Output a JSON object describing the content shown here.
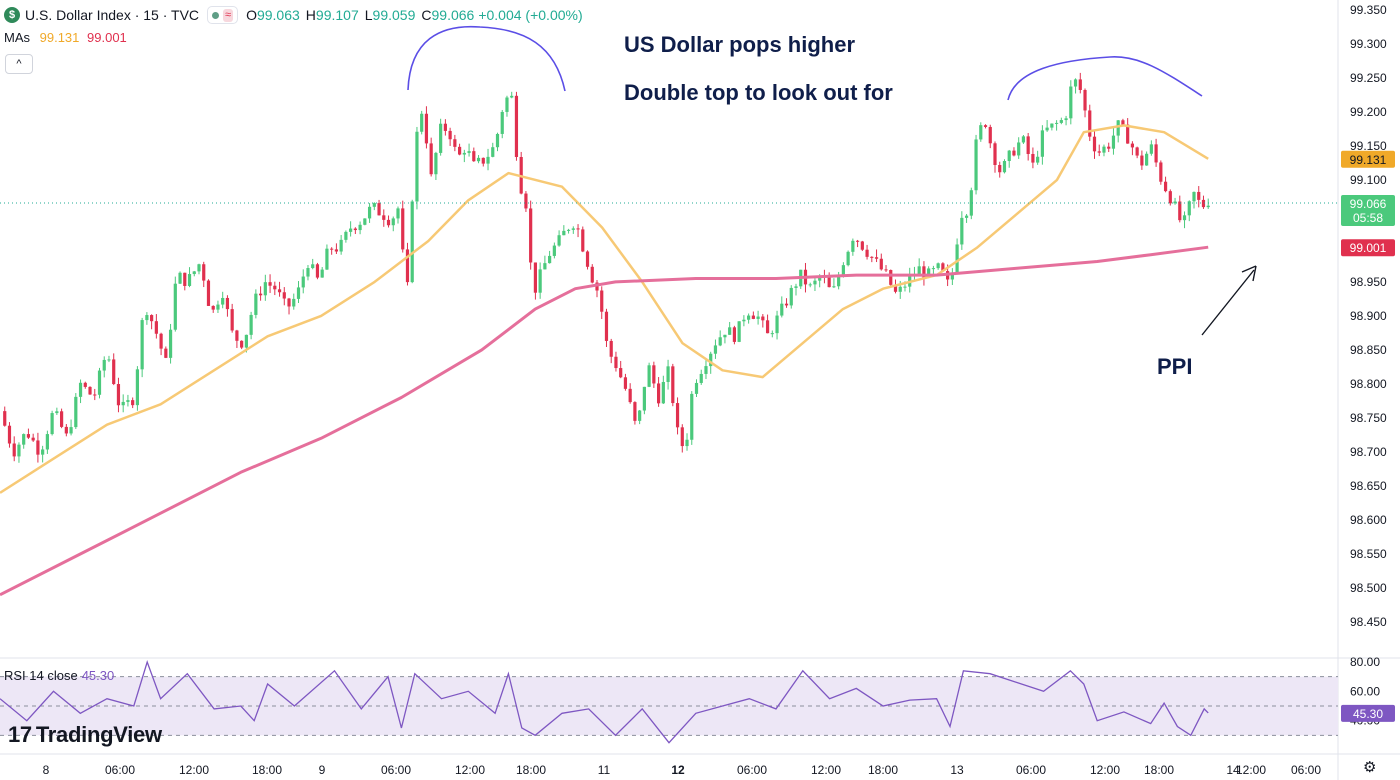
{
  "header": {
    "logo_glyph": "$",
    "symbol_title": "U.S. Dollar Index · 15 · TVC",
    "wave_glyph": "≈",
    "ohlc": {
      "o_label": "O",
      "o_value": "99.063",
      "h_label": "H",
      "h_value": "99.107",
      "l_label": "L",
      "l_value": "99.059",
      "c_label": "C",
      "c_value": "99.066",
      "change": "+0.004 (+0.00%)"
    }
  },
  "mas": {
    "label": "MAs",
    "ma50": "99.131",
    "ma200": "99.001"
  },
  "collapse_glyph": "^",
  "annotations": {
    "line1": "US Dollar pops higher",
    "line2": "Double top to look out for",
    "ppi": "PPI"
  },
  "rsi": {
    "label": "RSI 14 close",
    "value": "45.30"
  },
  "branding": {
    "mark": "17",
    "name": "TradingView"
  },
  "colors": {
    "up": "#4bc97c",
    "down": "#e0304e",
    "ma_fast": "#f7c975",
    "ma_slow": "#e56f9b",
    "rsi_line": "#7e57c2",
    "rsi_band": "#ede7f6",
    "annotation": "#0f1e4a",
    "arc": "#5b4ee6"
  },
  "chart_data": {
    "type": "candlestick",
    "symbol": "U.S. Dollar Index",
    "timeframe": "15",
    "ylim": [
      98.4,
      99.36
    ],
    "y_ticks": [
      "99.350",
      "99.300",
      "99.250",
      "99.200",
      "99.150",
      "99.100",
      "99.050",
      "99.000",
      "98.950",
      "98.900",
      "98.850",
      "98.800",
      "98.750",
      "98.700",
      "98.650",
      "98.600",
      "98.550",
      "98.500",
      "98.450"
    ],
    "x_ticks": [
      {
        "label": "8",
        "bold": false,
        "t": 0.03
      },
      {
        "label": "06:00",
        "bold": false,
        "t": 0.085
      },
      {
        "label": "12:00",
        "bold": false,
        "t": 0.138
      },
      {
        "label": "18:00",
        "bold": false,
        "t": 0.19
      },
      {
        "label": "9",
        "bold": false,
        "t": 0.23
      },
      {
        "label": "06:00",
        "bold": false,
        "t": 0.283
      },
      {
        "label": "12:00",
        "bold": false,
        "t": 0.336
      },
      {
        "label": "18:00",
        "bold": false,
        "t": 0.389
      },
      {
        "label": "11",
        "bold": false,
        "t": 0.38
      },
      {
        "label": "12",
        "bold": true,
        "t": 0.432
      },
      {
        "label": "06:00",
        "bold": false,
        "t": 0.484
      },
      {
        "label": "12:00",
        "bold": false,
        "t": 0.538
      },
      {
        "label": "18:00",
        "bold": false,
        "t": 0.59
      },
      {
        "label": "13",
        "bold": false,
        "t": 0.632
      },
      {
        "label": "06:00",
        "bold": false,
        "t": 0.684
      },
      {
        "label": "12:00",
        "bold": false,
        "t": 0.737
      },
      {
        "label": "18:00",
        "bold": false,
        "t": 0.79
      },
      {
        "label": "14",
        "bold": false,
        "t": 0.83
      },
      {
        "label": "06:00",
        "bold": false,
        "t": 0.882
      },
      {
        "label": "12:00",
        "bold": false,
        "t": 0.935
      }
    ],
    "price_path": [
      [
        0.0,
        98.76
      ],
      [
        0.01,
        98.7
      ],
      [
        0.02,
        98.73
      ],
      [
        0.03,
        98.7
      ],
      [
        0.04,
        98.76
      ],
      [
        0.05,
        98.72
      ],
      [
        0.06,
        98.8
      ],
      [
        0.07,
        98.78
      ],
      [
        0.08,
        98.85
      ],
      [
        0.09,
        98.76
      ],
      [
        0.1,
        98.78
      ],
      [
        0.108,
        98.92
      ],
      [
        0.116,
        98.88
      ],
      [
        0.124,
        98.83
      ],
      [
        0.132,
        98.96
      ],
      [
        0.14,
        98.95
      ],
      [
        0.15,
        98.98
      ],
      [
        0.158,
        98.9
      ],
      [
        0.166,
        98.94
      ],
      [
        0.174,
        98.87
      ],
      [
        0.182,
        98.86
      ],
      [
        0.19,
        98.92
      ],
      [
        0.198,
        98.95
      ],
      [
        0.206,
        98.94
      ],
      [
        0.214,
        98.91
      ],
      [
        0.222,
        98.93
      ],
      [
        0.23,
        98.98
      ],
      [
        0.238,
        98.95
      ],
      [
        0.246,
        99.0
      ],
      [
        0.254,
        99.0
      ],
      [
        0.262,
        99.03
      ],
      [
        0.27,
        99.04
      ],
      [
        0.278,
        99.06
      ],
      [
        0.286,
        99.05
      ],
      [
        0.292,
        99.04
      ],
      [
        0.298,
        99.06
      ],
      [
        0.304,
        98.92
      ],
      [
        0.31,
        99.15
      ],
      [
        0.316,
        99.21
      ],
      [
        0.322,
        99.1
      ],
      [
        0.33,
        99.18
      ],
      [
        0.336,
        99.17
      ],
      [
        0.342,
        99.13
      ],
      [
        0.348,
        99.15
      ],
      [
        0.354,
        99.12
      ],
      [
        0.362,
        99.13
      ],
      [
        0.37,
        99.15
      ],
      [
        0.376,
        99.21
      ],
      [
        0.382,
        99.23
      ],
      [
        0.388,
        99.1
      ],
      [
        0.394,
        99.06
      ],
      [
        0.398,
        98.93
      ],
      [
        0.404,
        98.96
      ],
      [
        0.41,
        98.99
      ],
      [
        0.418,
        99.01
      ],
      [
        0.424,
        99.03
      ],
      [
        0.43,
        99.04
      ],
      [
        0.436,
        99.0
      ],
      [
        0.442,
        98.96
      ],
      [
        0.448,
        98.93
      ],
      [
        0.454,
        98.85
      ],
      [
        0.46,
        98.83
      ],
      [
        0.468,
        98.79
      ],
      [
        0.476,
        98.73
      ],
      [
        0.484,
        98.83
      ],
      [
        0.492,
        98.78
      ],
      [
        0.5,
        98.82
      ],
      [
        0.506,
        98.73
      ],
      [
        0.512,
        98.7
      ],
      [
        0.518,
        98.8
      ],
      [
        0.526,
        98.83
      ],
      [
        0.534,
        98.86
      ],
      [
        0.542,
        98.88
      ],
      [
        0.55,
        98.87
      ],
      [
        0.558,
        98.91
      ],
      [
        0.566,
        98.9
      ],
      [
        0.574,
        98.87
      ],
      [
        0.582,
        98.9
      ],
      [
        0.59,
        98.93
      ],
      [
        0.598,
        98.96
      ],
      [
        0.606,
        98.94
      ],
      [
        0.614,
        98.96
      ],
      [
        0.622,
        98.93
      ],
      [
        0.63,
        98.98
      ],
      [
        0.638,
        99.02
      ],
      [
        0.646,
        99.0
      ],
      [
        0.654,
        98.98
      ],
      [
        0.662,
        98.96
      ],
      [
        0.67,
        98.93
      ],
      [
        0.678,
        98.95
      ],
      [
        0.686,
        98.97
      ],
      [
        0.694,
        98.96
      ],
      [
        0.702,
        98.97
      ],
      [
        0.71,
        98.94
      ],
      [
        0.718,
        99.05
      ],
      [
        0.724,
        99.06
      ],
      [
        0.73,
        99.16
      ],
      [
        0.736,
        99.19
      ],
      [
        0.742,
        99.14
      ],
      [
        0.748,
        99.11
      ],
      [
        0.756,
        99.14
      ],
      [
        0.764,
        99.16
      ],
      [
        0.772,
        99.12
      ],
      [
        0.78,
        99.17
      ],
      [
        0.788,
        99.18
      ],
      [
        0.796,
        99.19
      ],
      [
        0.802,
        99.25
      ],
      [
        0.808,
        99.23
      ],
      [
        0.814,
        99.17
      ],
      [
        0.82,
        99.14
      ],
      [
        0.828,
        99.15
      ],
      [
        0.836,
        99.18
      ],
      [
        0.844,
        99.16
      ],
      [
        0.852,
        99.12
      ],
      [
        0.86,
        99.15
      ],
      [
        0.868,
        99.1
      ],
      [
        0.876,
        99.07
      ],
      [
        0.884,
        99.03
      ],
      [
        0.892,
        99.08
      ],
      [
        0.898,
        99.06
      ],
      [
        0.903,
        99.07
      ]
    ],
    "series": [
      {
        "name": "MA 50",
        "last": "99.131",
        "path": [
          [
            0.0,
            98.64
          ],
          [
            0.04,
            98.69
          ],
          [
            0.08,
            98.74
          ],
          [
            0.12,
            98.77
          ],
          [
            0.16,
            98.82
          ],
          [
            0.2,
            98.87
          ],
          [
            0.24,
            98.9
          ],
          [
            0.28,
            98.95
          ],
          [
            0.32,
            99.01
          ],
          [
            0.35,
            99.07
          ],
          [
            0.38,
            99.11
          ],
          [
            0.42,
            99.09
          ],
          [
            0.45,
            99.03
          ],
          [
            0.48,
            98.95
          ],
          [
            0.51,
            98.86
          ],
          [
            0.54,
            98.82
          ],
          [
            0.57,
            98.81
          ],
          [
            0.6,
            98.86
          ],
          [
            0.63,
            98.91
          ],
          [
            0.66,
            98.94
          ],
          [
            0.7,
            98.96
          ],
          [
            0.73,
            99.0
          ],
          [
            0.76,
            99.05
          ],
          [
            0.79,
            99.1
          ],
          [
            0.81,
            99.17
          ],
          [
            0.84,
            99.18
          ],
          [
            0.87,
            99.17
          ],
          [
            0.903,
            99.131
          ]
        ]
      },
      {
        "name": "MA 200",
        "last": "99.001",
        "path": [
          [
            0.0,
            98.49
          ],
          [
            0.06,
            98.55
          ],
          [
            0.12,
            98.61
          ],
          [
            0.18,
            98.67
          ],
          [
            0.24,
            98.72
          ],
          [
            0.3,
            98.78
          ],
          [
            0.36,
            98.85
          ],
          [
            0.4,
            98.91
          ],
          [
            0.43,
            98.94
          ],
          [
            0.46,
            98.95
          ],
          [
            0.52,
            98.955
          ],
          [
            0.58,
            98.955
          ],
          [
            0.64,
            98.96
          ],
          [
            0.7,
            98.96
          ],
          [
            0.76,
            98.97
          ],
          [
            0.82,
            98.98
          ],
          [
            0.86,
            98.99
          ],
          [
            0.903,
            99.001
          ]
        ]
      }
    ],
    "current_price": "99.066",
    "countdown": "05:58",
    "rsi": {
      "ylim": [
        20,
        80
      ],
      "levels": [
        70,
        50,
        30
      ],
      "y_ticks": [
        "80.00",
        "60.00",
        "40.00"
      ],
      "last": "45.30",
      "path": [
        [
          0.0,
          55
        ],
        [
          0.02,
          40
        ],
        [
          0.04,
          60
        ],
        [
          0.06,
          45
        ],
        [
          0.08,
          55
        ],
        [
          0.1,
          50
        ],
        [
          0.11,
          80
        ],
        [
          0.12,
          55
        ],
        [
          0.14,
          72
        ],
        [
          0.16,
          48
        ],
        [
          0.18,
          50
        ],
        [
          0.19,
          40
        ],
        [
          0.2,
          65
        ],
        [
          0.22,
          50
        ],
        [
          0.25,
          74
        ],
        [
          0.27,
          48
        ],
        [
          0.29,
          70
        ],
        [
          0.3,
          35
        ],
        [
          0.31,
          72
        ],
        [
          0.33,
          55
        ],
        [
          0.35,
          60
        ],
        [
          0.37,
          45
        ],
        [
          0.38,
          72
        ],
        [
          0.39,
          35
        ],
        [
          0.4,
          30
        ],
        [
          0.42,
          45
        ],
        [
          0.44,
          48
        ],
        [
          0.46,
          30
        ],
        [
          0.48,
          48
        ],
        [
          0.5,
          25
        ],
        [
          0.52,
          45
        ],
        [
          0.54,
          50
        ],
        [
          0.56,
          55
        ],
        [
          0.58,
          48
        ],
        [
          0.6,
          74
        ],
        [
          0.62,
          55
        ],
        [
          0.64,
          62
        ],
        [
          0.66,
          50
        ],
        [
          0.68,
          54
        ],
        [
          0.7,
          55
        ],
        [
          0.71,
          36
        ],
        [
          0.72,
          74
        ],
        [
          0.74,
          72
        ],
        [
          0.76,
          66
        ],
        [
          0.78,
          60
        ],
        [
          0.8,
          74
        ],
        [
          0.81,
          65
        ],
        [
          0.82,
          40
        ],
        [
          0.84,
          46
        ],
        [
          0.86,
          38
        ],
        [
          0.87,
          52
        ],
        [
          0.88,
          36
        ],
        [
          0.89,
          30
        ],
        [
          0.9,
          48
        ],
        [
          0.903,
          45.3
        ]
      ]
    }
  }
}
